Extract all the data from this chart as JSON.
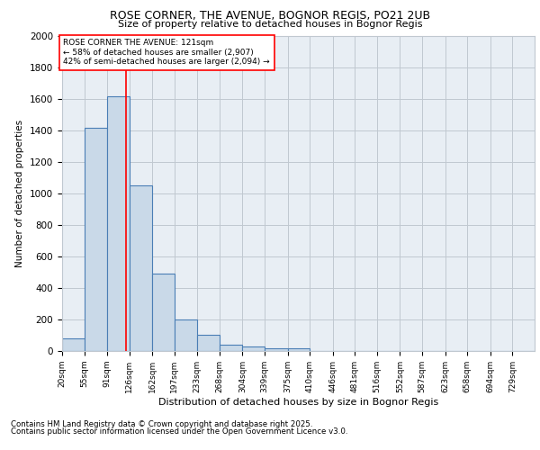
{
  "title1": "ROSE CORNER, THE AVENUE, BOGNOR REGIS, PO21 2UB",
  "title2": "Size of property relative to detached houses in Bognor Regis",
  "xlabel": "Distribution of detached houses by size in Bognor Regis",
  "ylabel": "Number of detached properties",
  "bar_labels": [
    "20sqm",
    "55sqm",
    "91sqm",
    "126sqm",
    "162sqm",
    "197sqm",
    "233sqm",
    "268sqm",
    "304sqm",
    "339sqm",
    "375sqm",
    "410sqm",
    "446sqm",
    "481sqm",
    "516sqm",
    "552sqm",
    "587sqm",
    "623sqm",
    "658sqm",
    "694sqm",
    "729sqm"
  ],
  "bar_values": [
    80,
    1420,
    1620,
    1050,
    490,
    200,
    105,
    40,
    30,
    20,
    20,
    0,
    0,
    0,
    0,
    0,
    0,
    0,
    0,
    0,
    0
  ],
  "bar_color": "#c9d9e8",
  "bar_edge_color": "#4a7eb5",
  "grid_color": "#c0c8d0",
  "background_color": "#e8eef4",
  "vline_x": 121,
  "vline_color": "red",
  "annotation_text": "ROSE CORNER THE AVENUE: 121sqm\n← 58% of detached houses are smaller (2,907)\n42% of semi-detached houses are larger (2,094) →",
  "annotation_box_color": "white",
  "annotation_box_edge": "red",
  "ylim": [
    0,
    2000
  ],
  "yticks": [
    0,
    200,
    400,
    600,
    800,
    1000,
    1200,
    1400,
    1600,
    1800,
    2000
  ],
  "footnote1": "Contains HM Land Registry data © Crown copyright and database right 2025.",
  "footnote2": "Contains public sector information licensed under the Open Government Licence v3.0.",
  "bin_starts": [
    20,
    55,
    91,
    126,
    162,
    197,
    233,
    268,
    304,
    339,
    375,
    410,
    446,
    481,
    516,
    552,
    587,
    623,
    658,
    694,
    729
  ]
}
